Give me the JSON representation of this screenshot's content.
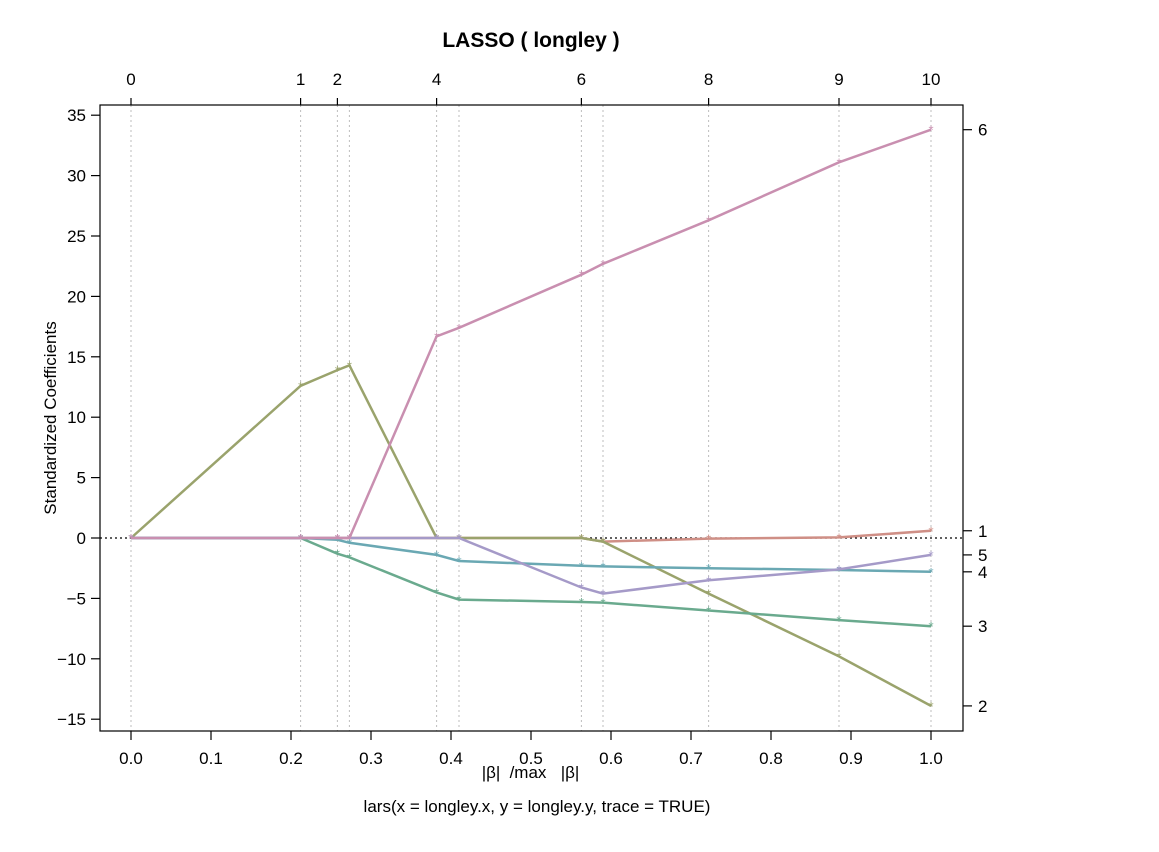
{
  "chart_data": {
    "type": "line",
    "title": "LASSO ( longley )",
    "xlabel_parts": [
      "|β|",
      "/max",
      "|β|"
    ],
    "subtitle": "lars(x = longley.x, y = longley.y, trace = TRUE)",
    "ylabel": "Standardized Coefficients",
    "xlim": [
      0,
      1
    ],
    "ylim": [
      -15,
      35
    ],
    "x_ticks": [
      0,
      0.1,
      0.2,
      0.3,
      0.4,
      0.5,
      0.6,
      0.7,
      0.8,
      0.9,
      1.0
    ],
    "x_tick_labels": [
      "0.0",
      "0.1",
      "0.2",
      "0.3",
      "0.4",
      "0.5",
      "0.6",
      "0.7",
      "0.8",
      "0.9",
      "1.0"
    ],
    "y_ticks": [
      -15,
      -10,
      -5,
      0,
      5,
      10,
      15,
      20,
      25,
      30,
      35
    ],
    "y_tick_labels": [
      "−15",
      "−10",
      "−5",
      "0",
      "5",
      "10",
      "15",
      "20",
      "25",
      "30",
      "35"
    ],
    "x": [
      0.0,
      0.212,
      0.258,
      0.273,
      0.382,
      0.41,
      0.563,
      0.59,
      0.722,
      0.885,
      1.0
    ],
    "top_axis": {
      "positions": [
        0.0,
        0.212,
        0.258,
        0.382,
        0.563,
        0.722,
        0.885,
        1.0
      ],
      "labels": [
        "0",
        "1",
        "2",
        "4",
        "6",
        "8",
        "9",
        "10"
      ]
    },
    "marker_symbol": "*",
    "series": [
      {
        "color": "#cf8f86",
        "label": "1",
        "label_y": 0.6,
        "values": [
          0,
          0,
          0,
          0,
          0,
          0,
          0,
          -0.3,
          -0.05,
          0.05,
          0.6
        ]
      },
      {
        "color": "#9aa36c",
        "label": "2",
        "label_y": -13.9,
        "values": [
          0,
          12.6,
          13.9,
          14.3,
          0,
          0,
          0,
          -0.3,
          -4.6,
          -9.8,
          -13.9
        ]
      },
      {
        "color": "#6aaa8e",
        "label": "3",
        "label_y": -7.3,
        "values": [
          0,
          0,
          -1.3,
          -1.6,
          -4.5,
          -5.1,
          -5.3,
          -5.35,
          -6.0,
          -6.8,
          -7.3
        ]
      },
      {
        "color": "#6aa8b3",
        "label": "4",
        "label_y": -2.8,
        "values": [
          0,
          0,
          -0.15,
          -0.4,
          -1.4,
          -1.9,
          -2.3,
          -2.35,
          -2.5,
          -2.65,
          -2.8
        ]
      },
      {
        "color": "#a59ac8",
        "label": "5",
        "label_y": -1.4,
        "values": [
          0,
          0,
          0,
          0,
          0,
          0,
          -4.1,
          -4.6,
          -3.5,
          -2.6,
          -1.4
        ]
      },
      {
        "color": "#c98fb0",
        "label": "6",
        "label_y": 33.8,
        "values": [
          0,
          0,
          0,
          0,
          16.7,
          17.4,
          21.8,
          22.7,
          26.3,
          31.1,
          33.8
        ]
      }
    ],
    "grid": "vertical dotted lines at each step",
    "zero_line": "dotted"
  }
}
